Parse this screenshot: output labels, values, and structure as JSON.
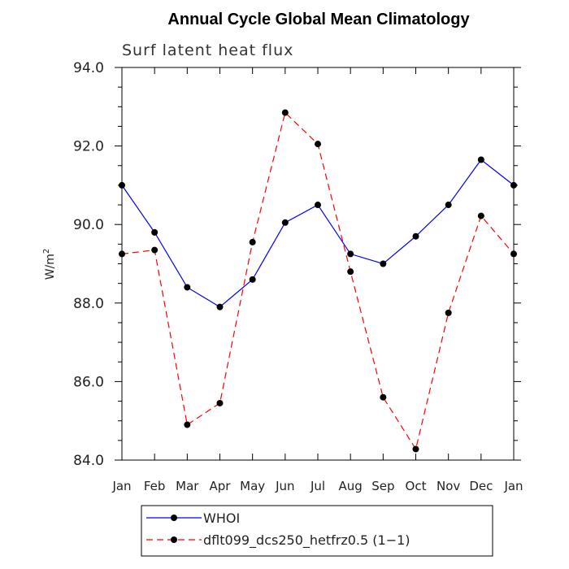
{
  "chart_data": {
    "type": "line",
    "title": "Annual Cycle Global Mean Climatology",
    "subtitle": "Surf latent heat flux",
    "ylabel": "W/m",
    "ylabel_superscript": "2",
    "xlabel": "",
    "ylim": [
      84.0,
      94.0
    ],
    "yticks": [
      84.0,
      86.0,
      88.0,
      90.0,
      92.0,
      94.0
    ],
    "ytick_labels": [
      "84.0",
      "86.0",
      "88.0",
      "90.0",
      "92.0",
      "94.0"
    ],
    "categories": [
      "Jan",
      "Feb",
      "Mar",
      "Apr",
      "May",
      "Jun",
      "Jul",
      "Aug",
      "Sep",
      "Oct",
      "Nov",
      "Dec",
      "Jan"
    ],
    "grid": false,
    "legend_position": "bottom",
    "series": [
      {
        "name": "WHOI",
        "color": "#0000ff",
        "dash": "solid",
        "values": [
          91.0,
          89.8,
          88.4,
          87.9,
          88.6,
          90.05,
          90.5,
          89.25,
          89.0,
          89.7,
          90.5,
          91.65,
          91.0
        ]
      },
      {
        "name": "dflt099_dcs250_hetfrz0.5 (1−1)",
        "color": "#ff0000",
        "dash": "dashed",
        "values": [
          89.25,
          89.35,
          84.9,
          85.45,
          89.55,
          92.85,
          92.05,
          88.8,
          85.6,
          84.28,
          87.75,
          90.22,
          89.25
        ]
      }
    ]
  }
}
